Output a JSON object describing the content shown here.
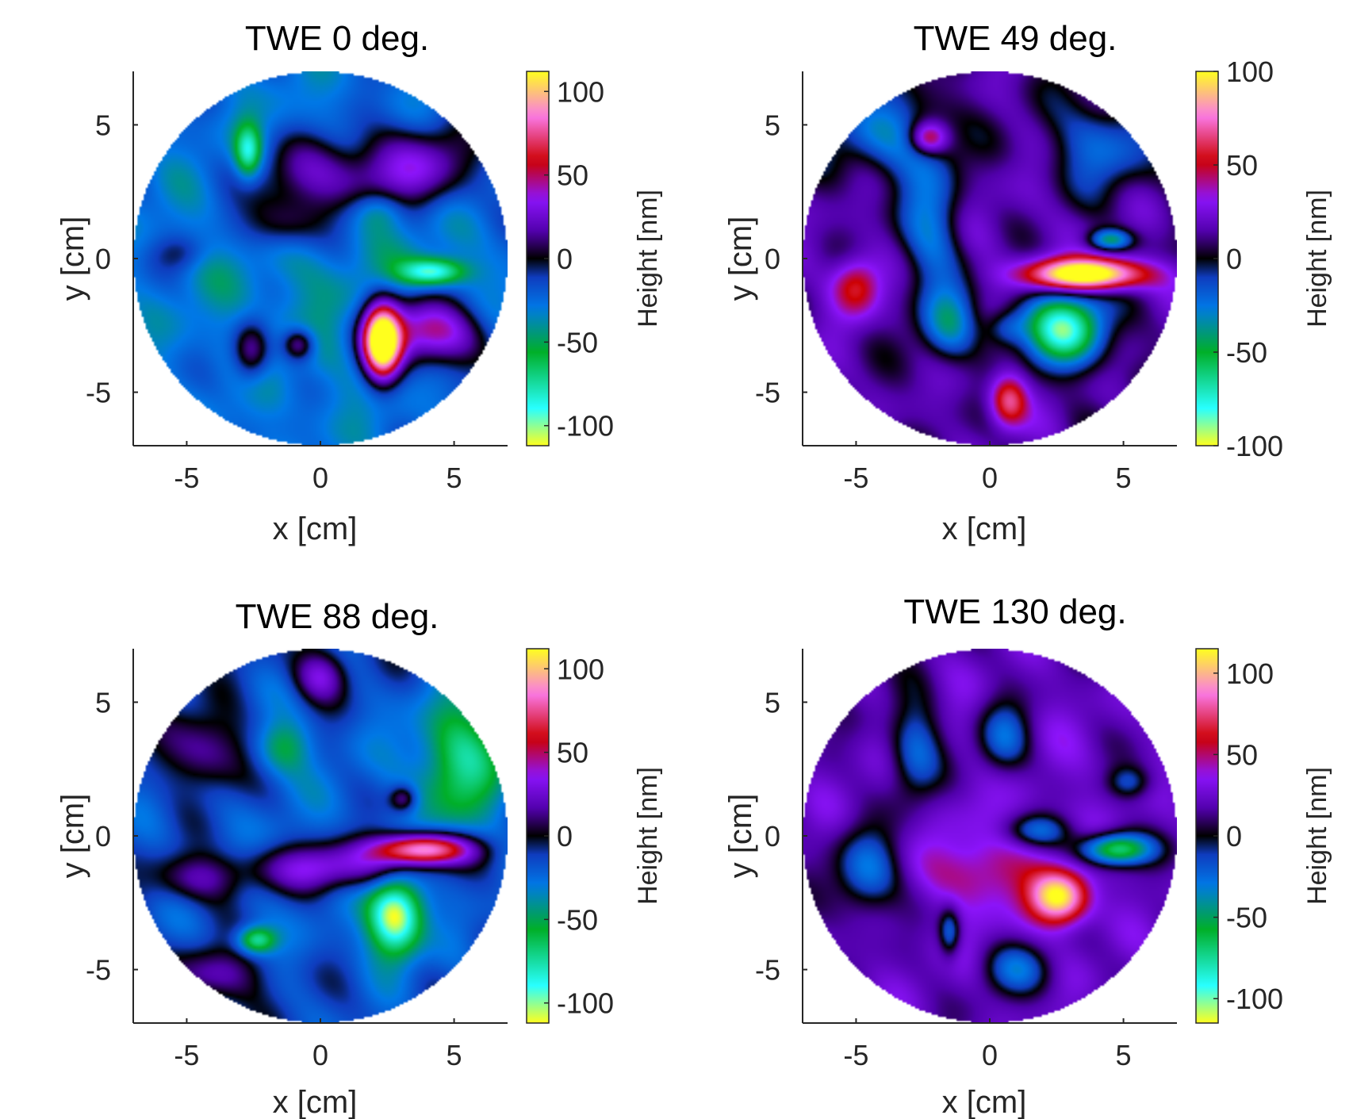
{
  "chart_data": [
    {
      "type": "heatmap",
      "title": "TWE 0 deg.",
      "xlabel": "x [cm]",
      "ylabel": "y [cm]",
      "colorbar_label": "Height [nm]",
      "xlim": [
        -7,
        7
      ],
      "ylim": [
        -7,
        7
      ],
      "clim": [
        -112,
        112
      ],
      "xticks": [
        "-5",
        "0",
        "5"
      ],
      "yticks": [
        "5",
        "0",
        "-5"
      ],
      "colorbar_ticks": [
        "100",
        "50",
        "0",
        "-50",
        "-100"
      ],
      "aperture_radius_cm": 7,
      "features": [
        {
          "x": 0,
          "y": 0,
          "sx": 12,
          "sy": 12,
          "v": -38
        },
        {
          "x": 0.5,
          "y": 3.0,
          "sx": 3.2,
          "sy": 1.6,
          "v": 56
        },
        {
          "x": 4.0,
          "y": 3.6,
          "sx": 2.0,
          "sy": 1.6,
          "v": 42
        },
        {
          "x": -1.5,
          "y": 1.2,
          "sx": 1.5,
          "sy": 1.0,
          "v": 36
        },
        {
          "x": 2.2,
          "y": 1.8,
          "sx": 1.0,
          "sy": 0.8,
          "v": -30
        },
        {
          "x": 4.2,
          "y": -0.5,
          "sx": 1.2,
          "sy": 0.5,
          "v": -70
        },
        {
          "x": 2.3,
          "y": -3.1,
          "sx": 0.7,
          "sy": 1.4,
          "v": 150
        },
        {
          "x": 4.0,
          "y": -2.8,
          "sx": 2.0,
          "sy": 1.3,
          "v": 80
        },
        {
          "x": -2.6,
          "y": -3.5,
          "sx": 0.7,
          "sy": 1.1,
          "v": 50
        },
        {
          "x": -0.8,
          "y": -3.2,
          "sx": 0.6,
          "sy": 0.6,
          "v": 50
        },
        {
          "x": -2.7,
          "y": 4.0,
          "sx": 0.5,
          "sy": 1.0,
          "v": -60
        },
        {
          "x": -5.2,
          "y": 0.2,
          "sx": 1.0,
          "sy": 0.7,
          "v": 20
        }
      ]
    },
    {
      "type": "heatmap",
      "title": "TWE 49 deg.",
      "xlabel": "x [cm]",
      "ylabel": "y [cm]",
      "colorbar_label": "Height [nm]",
      "xlim": [
        -7,
        7
      ],
      "ylim": [
        -7,
        7
      ],
      "clim": [
        -100,
        100
      ],
      "xticks": [
        "-5",
        "0",
        "5"
      ],
      "yticks": [
        "5",
        "0",
        "-5"
      ],
      "colorbar_ticks": [
        "100",
        "50",
        "0",
        "-50",
        "-100"
      ],
      "aperture_radius_cm": 7,
      "features": [
        {
          "x": 0,
          "y": 0,
          "sx": 12,
          "sy": 12,
          "v": 18
        },
        {
          "x": -3.8,
          "y": 4.6,
          "sx": 2.2,
          "sy": 1.6,
          "v": -38
        },
        {
          "x": 4.2,
          "y": 4.2,
          "sx": 2.0,
          "sy": 1.8,
          "v": -34
        },
        {
          "x": -2.2,
          "y": 1.0,
          "sx": 1.2,
          "sy": 3.0,
          "v": -40
        },
        {
          "x": 3.6,
          "y": -0.6,
          "sx": 2.2,
          "sy": 0.6,
          "v": 110
        },
        {
          "x": 2.8,
          "y": -2.6,
          "sx": 1.6,
          "sy": 1.4,
          "v": -95
        },
        {
          "x": 4.5,
          "y": 0.7,
          "sx": 0.8,
          "sy": 0.4,
          "v": -55
        },
        {
          "x": -5.0,
          "y": -1.0,
          "sx": 0.9,
          "sy": 1.1,
          "v": 45
        },
        {
          "x": -2.3,
          "y": 4.5,
          "sx": 0.7,
          "sy": 0.6,
          "v": 50
        },
        {
          "x": 0.7,
          "y": -5.3,
          "sx": 0.7,
          "sy": 1.0,
          "v": 55
        },
        {
          "x": -1.5,
          "y": -2.5,
          "sx": 1.0,
          "sy": 1.4,
          "v": -42
        },
        {
          "x": 0.6,
          "y": -2.6,
          "sx": 0.8,
          "sy": 0.7,
          "v": -30
        }
      ]
    },
    {
      "type": "heatmap",
      "title": "TWE 88 deg.",
      "xlabel": "x [cm]",
      "ylabel": "y [cm]",
      "colorbar_label": "Height [nm]",
      "xlim": [
        -7,
        7
      ],
      "ylim": [
        -7,
        7
      ],
      "clim": [
        -112,
        112
      ],
      "xticks": [
        "-5",
        "0",
        "5"
      ],
      "yticks": [
        "5",
        "0",
        "-5"
      ],
      "colorbar_ticks": [
        "100",
        "50",
        "0",
        "-50",
        "-100"
      ],
      "aperture_radius_cm": 7,
      "features": [
        {
          "x": 0,
          "y": 0,
          "sx": 12,
          "sy": 12,
          "v": -22
        },
        {
          "x": 3.8,
          "y": -0.5,
          "sx": 1.8,
          "sy": 0.6,
          "v": 115
        },
        {
          "x": 0.5,
          "y": -1.2,
          "sx": 3.0,
          "sy": 0.9,
          "v": 55
        },
        {
          "x": 2.8,
          "y": -3.0,
          "sx": 1.0,
          "sy": 1.5,
          "v": -100
        },
        {
          "x": 5.2,
          "y": 2.8,
          "sx": 1.6,
          "sy": 2.5,
          "v": -55
        },
        {
          "x": -4.2,
          "y": 3.2,
          "sx": 1.5,
          "sy": 1.5,
          "v": 40
        },
        {
          "x": -4.5,
          "y": -1.6,
          "sx": 1.6,
          "sy": 0.9,
          "v": 35
        },
        {
          "x": -3.8,
          "y": -5.2,
          "sx": 1.8,
          "sy": 1.0,
          "v": 35
        },
        {
          "x": 0.0,
          "y": 6.0,
          "sx": 1.0,
          "sy": 1.0,
          "v": 45
        },
        {
          "x": 3.1,
          "y": 1.4,
          "sx": 0.5,
          "sy": 0.5,
          "v": 40
        },
        {
          "x": -1.4,
          "y": 3.3,
          "sx": 1.0,
          "sy": 1.0,
          "v": -35
        },
        {
          "x": -2.4,
          "y": -3.9,
          "sx": 0.7,
          "sy": 0.5,
          "v": -60
        }
      ]
    },
    {
      "type": "heatmap",
      "title": "TWE 130 deg.",
      "xlabel": "x [cm]",
      "ylabel": "y [cm]",
      "colorbar_label": "Height [nm]",
      "xlim": [
        -7,
        7
      ],
      "ylim": [
        -7,
        7
      ],
      "clim": [
        -115,
        115
      ],
      "xticks": [
        "-5",
        "0",
        "5"
      ],
      "yticks": [
        "5",
        "0",
        "-5"
      ],
      "colorbar_ticks": [
        "100",
        "50",
        "0",
        "-50",
        "-100"
      ],
      "aperture_radius_cm": 7,
      "features": [
        {
          "x": 0,
          "y": 0,
          "sx": 12,
          "sy": 12,
          "v": 28
        },
        {
          "x": -4.6,
          "y": -1.4,
          "sx": 1.2,
          "sy": 1.6,
          "v": -52
        },
        {
          "x": -2.8,
          "y": 3.2,
          "sx": 1.0,
          "sy": 2.0,
          "v": -48
        },
        {
          "x": 0.5,
          "y": 3.6,
          "sx": 1.0,
          "sy": 1.4,
          "v": -45
        },
        {
          "x": 1.8,
          "y": 0.2,
          "sx": 1.2,
          "sy": 0.6,
          "v": -42
        },
        {
          "x": 4.7,
          "y": -0.5,
          "sx": 1.3,
          "sy": 0.6,
          "v": -100
        },
        {
          "x": 2.6,
          "y": -2.3,
          "sx": 1.1,
          "sy": 1.0,
          "v": 90
        },
        {
          "x": 1.0,
          "y": -5.0,
          "sx": 1.3,
          "sy": 1.0,
          "v": -42
        },
        {
          "x": -1.5,
          "y": -3.6,
          "sx": 0.4,
          "sy": 0.9,
          "v": -48
        },
        {
          "x": 5.2,
          "y": 2.0,
          "sx": 0.8,
          "sy": 0.6,
          "v": -35
        },
        {
          "x": -0.3,
          "y": -1.4,
          "sx": 1.6,
          "sy": 1.2,
          "v": 30
        }
      ]
    }
  ]
}
